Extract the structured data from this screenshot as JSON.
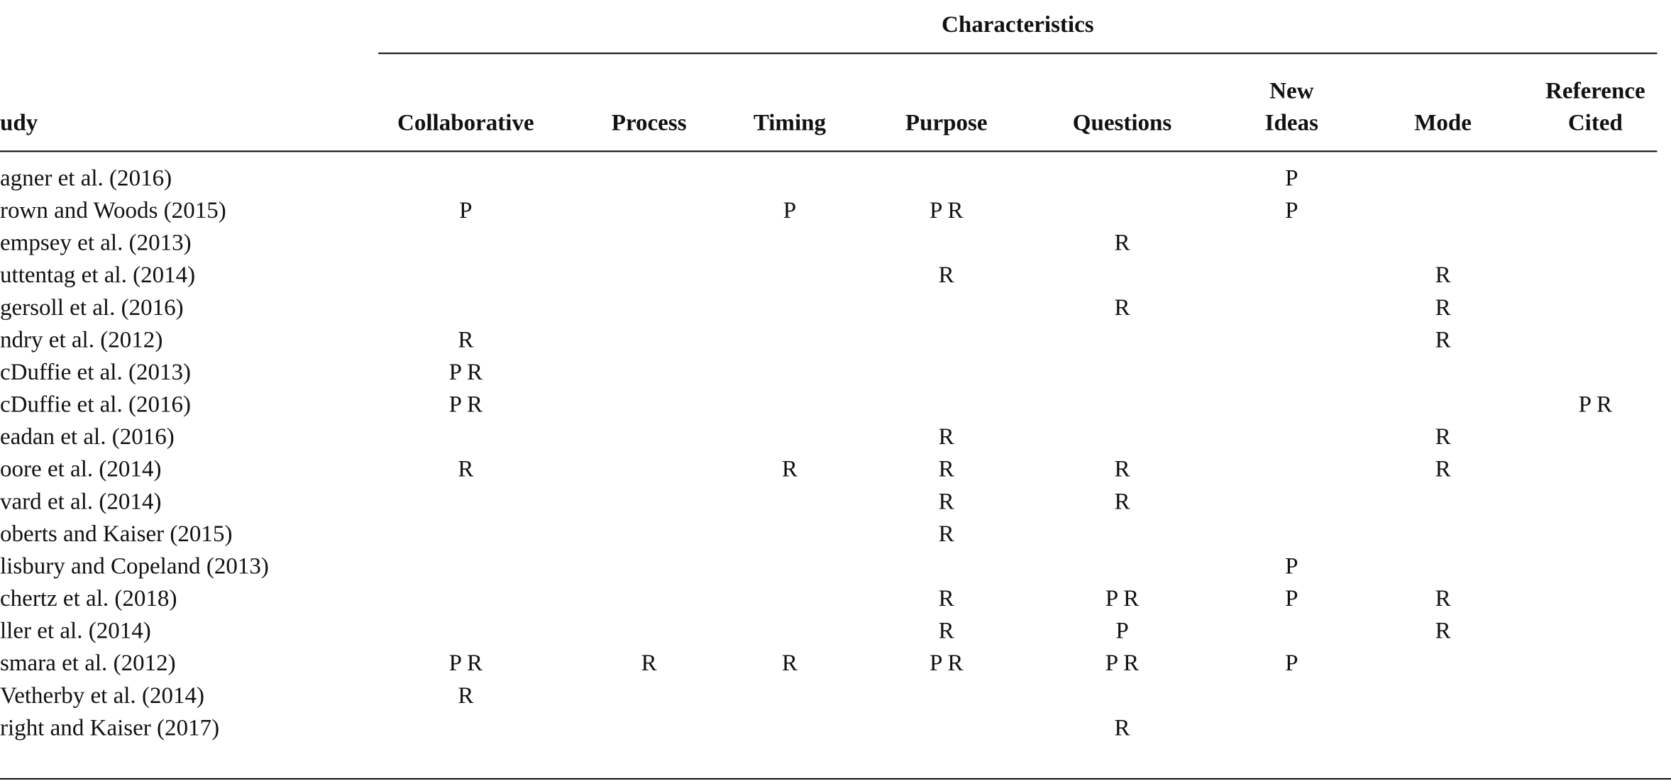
{
  "table": {
    "spanner": "Characteristics",
    "stub_header": "udy",
    "columns": [
      [
        "Collaborative"
      ],
      [
        "Process"
      ],
      [
        "Timing"
      ],
      [
        "Purpose"
      ],
      [
        "Questions"
      ],
      [
        "New",
        "Ideas"
      ],
      [
        "Mode"
      ],
      [
        "Reference",
        "Cited"
      ]
    ],
    "rows": [
      {
        "study": "agner et al. (2016)",
        "cells": [
          null,
          null,
          null,
          null,
          null,
          "P",
          null,
          null
        ]
      },
      {
        "study": "rown and Woods (2015)",
        "cells": [
          "P",
          null,
          "P",
          "P R",
          null,
          "P",
          null,
          null
        ]
      },
      {
        "study": "empsey et al. (2013)",
        "cells": [
          null,
          null,
          null,
          null,
          "R",
          null,
          null,
          null
        ]
      },
      {
        "study": "uttentag et al. (2014)",
        "cells": [
          null,
          null,
          null,
          "R",
          null,
          null,
          "R",
          null
        ]
      },
      {
        "study": "gersoll et al. (2016)",
        "cells": [
          null,
          null,
          null,
          null,
          "R",
          null,
          "R",
          null
        ]
      },
      {
        "study": "ndry et al. (2012)",
        "cells": [
          "R",
          null,
          null,
          null,
          null,
          null,
          "R",
          null
        ]
      },
      {
        "study": "cDuffie et al. (2013)",
        "cells": [
          "P R",
          null,
          null,
          null,
          null,
          null,
          null,
          null
        ]
      },
      {
        "study": "cDuffie et al. (2016)",
        "cells": [
          "P R",
          null,
          null,
          null,
          null,
          null,
          null,
          "P R"
        ]
      },
      {
        "study": "eadan et al. (2016)",
        "cells": [
          null,
          null,
          null,
          "R",
          null,
          null,
          "R",
          null
        ]
      },
      {
        "study": "oore et al. (2014)",
        "cells": [
          "R",
          null,
          "R",
          "R",
          "R",
          null,
          "R",
          null
        ]
      },
      {
        "study": "vard et al. (2014)",
        "cells": [
          null,
          null,
          null,
          "R",
          "R",
          null,
          null,
          null
        ]
      },
      {
        "study": "oberts and Kaiser (2015)",
        "cells": [
          null,
          null,
          null,
          "R",
          null,
          null,
          null,
          null
        ]
      },
      {
        "study": "lisbury and Copeland (2013)",
        "cells": [
          null,
          null,
          null,
          null,
          null,
          "P",
          null,
          null
        ]
      },
      {
        "study": "chertz et al. (2018)",
        "cells": [
          null,
          null,
          null,
          "R",
          "P R",
          "P",
          "R",
          null
        ]
      },
      {
        "study": "ller et al. (2014)",
        "cells": [
          null,
          null,
          null,
          "R",
          "P",
          null,
          "R",
          null
        ]
      },
      {
        "study": "smara et al. (2012)",
        "cells": [
          "P R",
          "R",
          "R",
          "P R",
          "P R",
          "P",
          null,
          null
        ]
      },
      {
        "study": "Vetherby et al. (2014)",
        "cells": [
          "R",
          null,
          null,
          null,
          null,
          null,
          null,
          null
        ]
      },
      {
        "study": "right and Kaiser (2017)",
        "cells": [
          null,
          null,
          null,
          null,
          "R",
          null,
          null,
          null
        ]
      }
    ]
  }
}
